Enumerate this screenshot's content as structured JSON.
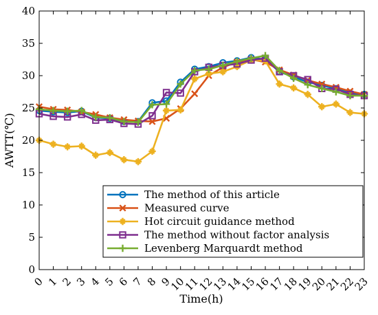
{
  "chart_data": {
    "type": "line",
    "xlabel": "Time(h)",
    "ylabel": "AWTT(℃)",
    "x": [
      0,
      1,
      2,
      3,
      4,
      5,
      6,
      7,
      8,
      9,
      10,
      11,
      12,
      13,
      14,
      15,
      16,
      17,
      18,
      19,
      20,
      21,
      22,
      23
    ],
    "xlim": [
      0,
      23
    ],
    "ylim": [
      0,
      40
    ],
    "yticks": [
      0,
      5,
      10,
      15,
      20,
      25,
      30,
      35,
      40
    ],
    "grid": false,
    "legend_position": "bottom-right",
    "series": [
      {
        "name": "The method of this article",
        "color": "#0072BD",
        "marker": "circle",
        "values": [
          24.6,
          24.4,
          24.3,
          24.5,
          23.5,
          23.4,
          22.9,
          22.9,
          25.8,
          26.1,
          29.0,
          31.0,
          31.4,
          32.0,
          32.3,
          32.8,
          32.5,
          30.6,
          29.8,
          29.0,
          28.5,
          28.0,
          27.3,
          27.1
        ]
      },
      {
        "name": "Measured curve",
        "color": "#D95319",
        "marker": "x",
        "values": [
          25.2,
          24.8,
          24.7,
          24.4,
          24.0,
          23.5,
          23.2,
          23.0,
          22.9,
          23.4,
          24.9,
          27.2,
          30.0,
          31.3,
          32.1,
          32.5,
          32.1,
          30.9,
          30.1,
          29.3,
          28.7,
          28.2,
          27.6,
          27.1
        ]
      },
      {
        "name": "Hot circuit guidance method",
        "color": "#EDB120",
        "marker": "star",
        "values": [
          20.0,
          19.4,
          19.0,
          19.1,
          17.7,
          18.1,
          17.0,
          16.7,
          18.3,
          24.6,
          24.7,
          29.5,
          30.3,
          30.6,
          31.4,
          32.4,
          32.3,
          28.7,
          28.1,
          27.1,
          25.2,
          25.6,
          24.3,
          24.1
        ]
      },
      {
        "name": "The method without factor analysis",
        "color": "#7E2F8E",
        "marker": "square",
        "values": [
          24.1,
          23.7,
          23.6,
          24.0,
          23.1,
          23.2,
          22.6,
          22.5,
          23.8,
          27.4,
          27.3,
          30.6,
          31.3,
          31.6,
          31.8,
          32.4,
          32.7,
          30.6,
          30.0,
          29.4,
          28.0,
          27.9,
          27.1,
          26.9
        ]
      },
      {
        "name": "Levenberg Marquardt method",
        "color": "#77AC30",
        "marker": "plus",
        "values": [
          24.8,
          24.6,
          24.5,
          24.6,
          23.6,
          23.5,
          22.9,
          22.8,
          25.5,
          25.6,
          28.7,
          30.8,
          31.0,
          31.6,
          32.2,
          32.7,
          33.1,
          30.8,
          29.6,
          28.6,
          28.0,
          27.5,
          26.9,
          26.9
        ]
      }
    ]
  }
}
